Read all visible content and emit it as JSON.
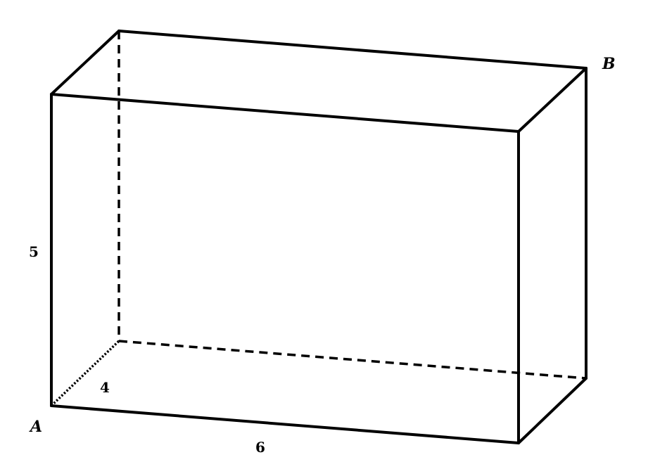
{
  "figure": {
    "type": "rectangular box (cuboid)",
    "vertices": {
      "a": "A",
      "b": "B"
    },
    "dimensions": {
      "height": "5",
      "depth": "4",
      "width": "6"
    },
    "styles": {
      "line_color": "#000000",
      "background": "#ffffff"
    }
  }
}
